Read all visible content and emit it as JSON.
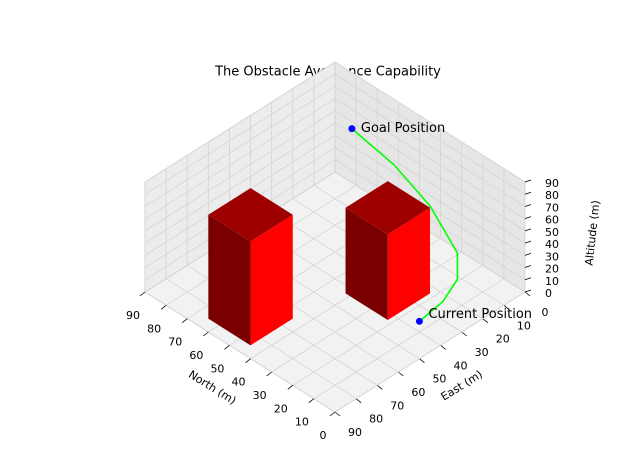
{
  "chart_data": {
    "type": "3d",
    "title": "The Obstacle Avoidance Capability",
    "xlabel": "East (m)",
    "ylabel": "North (m)",
    "zlabel": "Altitude (m)",
    "xlim": [
      0,
      90
    ],
    "xticks": [
      0,
      10,
      20,
      30,
      40,
      50,
      60,
      70,
      80,
      90
    ],
    "ylim": [
      0,
      90
    ],
    "yticks": [
      0,
      10,
      20,
      30,
      40,
      50,
      60,
      70,
      80,
      90
    ],
    "zlim": [
      0,
      90
    ],
    "zticks": [
      0,
      10,
      20,
      30,
      40,
      50,
      60,
      70,
      80,
      90
    ],
    "grid": true,
    "obstacles": [
      {
        "east": [
          65,
          85
        ],
        "north": [
          45,
          65
        ],
        "altitude": [
          0,
          85
        ],
        "color": "#ff0000"
      },
      {
        "east": [
          23,
          43
        ],
        "north": [
          22,
          42
        ],
        "altitude": [
          0,
          70
        ],
        "color": "#ff0000"
      }
    ],
    "trajectory": {
      "color": "#00ff00",
      "east": [
        36,
        30,
        25,
        22,
        20,
        20,
        21
      ],
      "north": [
        14,
        9,
        7,
        10,
        25,
        42,
        61
      ],
      "altitude": [
        0,
        15,
        30,
        45,
        65,
        80,
        90
      ]
    },
    "annotations": [
      {
        "text": "Goal Position",
        "east": 21,
        "north": 61,
        "altitude": 90,
        "color": "#0000ff"
      },
      {
        "text": "Current Position",
        "east": 36,
        "north": 14,
        "altitude": 0,
        "color": "#0000ff"
      }
    ]
  }
}
